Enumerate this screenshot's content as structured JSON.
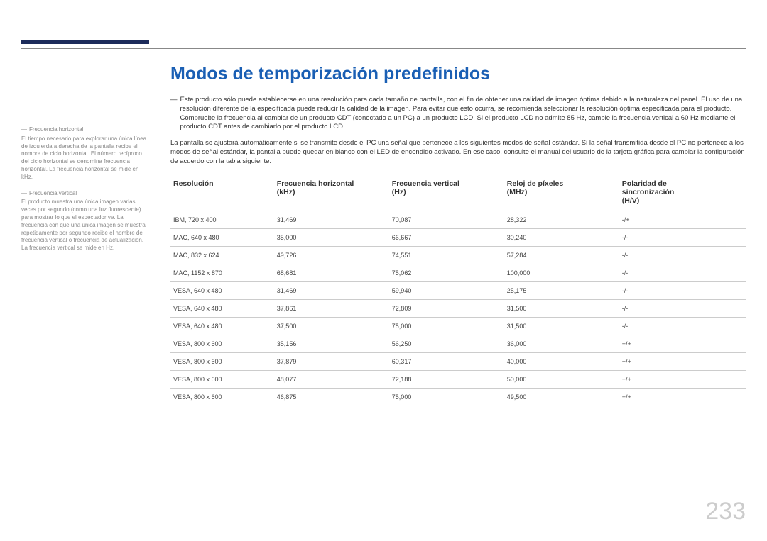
{
  "title": "Modos de temporización predefinidos",
  "title_color": "#1a5fb4",
  "accent_color": "#1c2b5a",
  "page_number": "233",
  "sidebar": {
    "notes": [
      {
        "title": "Frecuencia horizontal",
        "body": "El tiempo necesario para explorar una única línea de izquierda a derecha de la pantalla recibe el nombre de ciclo horizontal. El número recíproco del ciclo horizontal se denomina frecuencia horizontal. La frecuencia horizontal se mide en kHz."
      },
      {
        "title": "Frecuencia vertical",
        "body": "El producto muestra una única imagen varias veces por segundo (como una luz fluorescente) para mostrar lo que el espectador ve. La frecuencia con que una única imagen se muestra repetidamente por segundo recibe el nombre de frecuencia vertical o frecuencia de actualización. La frecuencia vertical se mide en Hz."
      }
    ]
  },
  "intro_bullet": "―",
  "intro_text": "Este producto sólo puede establecerse en una resolución para cada tamaño de pantalla, con el fin de obtener una calidad de imagen óptima debido a la naturaleza del panel. El uso de una resolución diferente de la especificada puede reducir la calidad de la imagen. Para evitar que esto ocurra, se recomienda seleccionar la resolución óptima especificada para el producto.",
  "intro_text2": "Compruebe la frecuencia al cambiar de un producto CDT (conectado a un PC) a un producto LCD. Si el producto LCD no admite 85 Hz, cambie la frecuencia vertical a 60 Hz mediante el producto CDT antes de cambiarlo por el producto LCD.",
  "paragraph": "La pantalla se ajustará automáticamente si se transmite desde el PC una señal que pertenece a los siguientes modos de señal estándar. Si la señal transmitida desde el PC no pertenece a los modos de señal estándar, la pantalla puede quedar en blanco con el LED de encendido activado. En ese caso, consulte el manual del usuario de la tarjeta gráfica para cambiar la configuración de acuerdo con la tabla siguiente.",
  "table": {
    "headers": [
      "Resolución",
      "Frecuencia horizontal (kHz)",
      "Frecuencia vertical (Hz)",
      "Reloj de píxeles (MHz)",
      "Polaridad de sincronización (H/V)"
    ],
    "rows": [
      [
        "IBM, 720 x 400",
        "31,469",
        "70,087",
        "28,322",
        "-/+"
      ],
      [
        "MAC, 640 x 480",
        "35,000",
        "66,667",
        "30,240",
        "-/-"
      ],
      [
        "MAC, 832 x 624",
        "49,726",
        "74,551",
        "57,284",
        "-/-"
      ],
      [
        "MAC, 1152 x 870",
        "68,681",
        "75,062",
        "100,000",
        "-/-"
      ],
      [
        "VESA, 640 x 480",
        "31,469",
        "59,940",
        "25,175",
        "-/-"
      ],
      [
        "VESA, 640 x 480",
        "37,861",
        "72,809",
        "31,500",
        "-/-"
      ],
      [
        "VESA, 640 x 480",
        "37,500",
        "75,000",
        "31,500",
        "-/-"
      ],
      [
        "VESA, 800 x 600",
        "35,156",
        "56,250",
        "36,000",
        "+/+"
      ],
      [
        "VESA, 800 x 600",
        "37,879",
        "60,317",
        "40,000",
        "+/+"
      ],
      [
        "VESA, 800 x 600",
        "48,077",
        "72,188",
        "50,000",
        "+/+"
      ],
      [
        "VESA, 800 x 600",
        "46,875",
        "75,000",
        "49,500",
        "+/+"
      ]
    ],
    "col_widths": [
      "18%",
      "20%",
      "20%",
      "20%",
      "22%"
    ]
  }
}
